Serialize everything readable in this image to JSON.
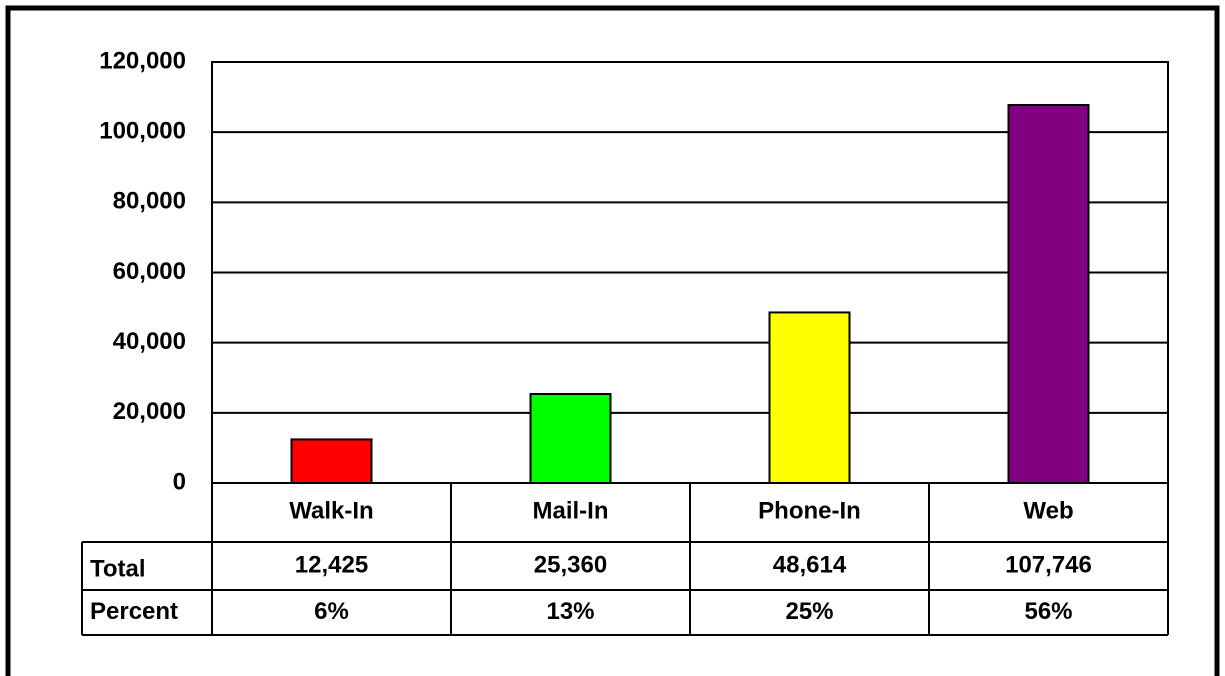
{
  "chart_data": {
    "type": "bar",
    "categories": [
      "Walk-In",
      "Mail-In",
      "Phone-In",
      "Web"
    ],
    "values": [
      12425,
      25360,
      48614,
      107746
    ],
    "value_labels": [
      "12,425",
      "25,360",
      "48,614",
      "107,746"
    ],
    "colors": [
      "#ff0000",
      "#00ff00",
      "#ffff00",
      "#800080"
    ],
    "ylim": [
      0,
      120000
    ],
    "yticks": [
      0,
      {
        "value": 20000,
        "label": "20,000"
      },
      {
        "value": 40000,
        "label": "40,000"
      },
      {
        "value": 60000,
        "label": "60,000"
      },
      {
        "value": 80000,
        "label": "80,000"
      },
      {
        "value": 100000,
        "label": "100,000"
      },
      {
        "value": 120000,
        "label": "120,000"
      }
    ],
    "grid": true,
    "data_table": {
      "total_label": "Total",
      "percent_label": "Percent",
      "percent": [
        6,
        13,
        25,
        56
      ],
      "percent_labels": [
        "6%",
        "13%",
        "25%",
        "56%"
      ]
    }
  }
}
